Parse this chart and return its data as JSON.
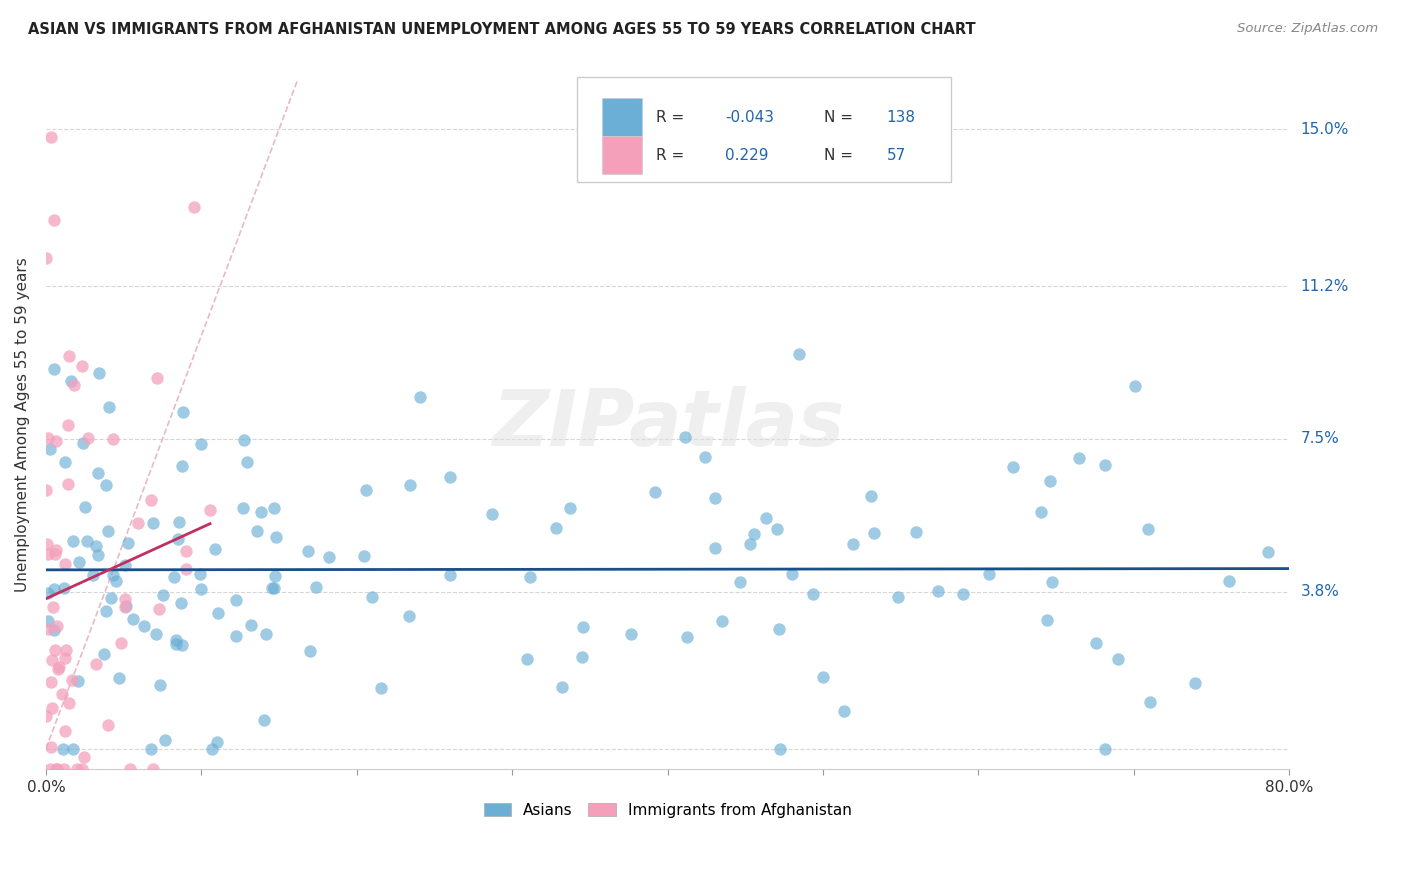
{
  "title": "ASIAN VS IMMIGRANTS FROM AFGHANISTAN UNEMPLOYMENT AMONG AGES 55 TO 59 YEARS CORRELATION CHART",
  "source": "Source: ZipAtlas.com",
  "ylabel": "Unemployment Among Ages 55 to 59 years",
  "xlim": [
    0.0,
    0.8
  ],
  "ylim": [
    -0.005,
    0.162
  ],
  "ytick_vals": [
    0.0,
    0.038,
    0.075,
    0.112,
    0.15
  ],
  "ytick_labels": [
    "",
    "3.8%",
    "7.5%",
    "11.2%",
    "15.0%"
  ],
  "xtick_vals": [
    0.0,
    0.1,
    0.2,
    0.3,
    0.4,
    0.5,
    0.6,
    0.7,
    0.8
  ],
  "xtick_labels": [
    "0.0%",
    "",
    "",
    "",
    "",
    "",
    "",
    "",
    "80.0%"
  ],
  "background_color": "#ffffff",
  "watermark": "ZIPatlas",
  "asian_color": "#6baed6",
  "afghan_color": "#f4a0bb",
  "asian_line_color": "#1a4f8a",
  "afghan_line_color": "#c03060",
  "diagonal_color": "#e8b0c0",
  "R_asian": -0.043,
  "N_asian": 138,
  "R_afghan": 0.229,
  "N_afghan": 57,
  "seed": 99
}
